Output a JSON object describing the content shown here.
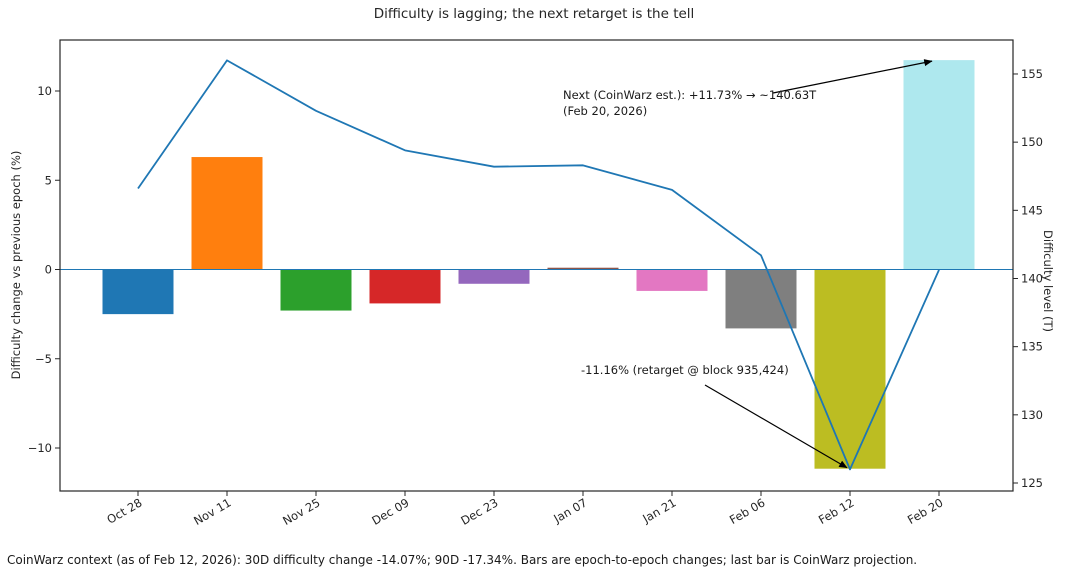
{
  "title": "Difficulty is lagging; the next retarget is the tell",
  "footer": "CoinWarz context (as of Feb 12, 2026): 30D difficulty change -14.07%; 90D -17.34%. Bars are epoch-to-epoch changes; last bar is CoinWarz projection.",
  "chart_data": {
    "type": "bar",
    "title": "Difficulty is lagging; the next retarget is the tell",
    "categories": [
      "Oct 28",
      "Nov 11",
      "Nov 25",
      "Dec 09",
      "Dec 23",
      "Jan 07",
      "Jan 21",
      "Feb 06",
      "Feb 12",
      "Feb 20"
    ],
    "series": [
      {
        "name": "Difficulty change vs previous epoch (%)",
        "type": "bar",
        "axis": "left",
        "values": [
          -2.5,
          6.3,
          -2.3,
          -1.9,
          -0.8,
          0.1,
          -1.2,
          -3.3,
          -11.16,
          11.73
        ],
        "bar_colors": [
          "#1f77b4",
          "#ff7f0e",
          "#2ca02c",
          "#d62728",
          "#9467bd",
          "#8c564b",
          "#e377c2",
          "#7f7f7f",
          "#bcbd22",
          "#aee8ee"
        ]
      },
      {
        "name": "Difficulty level (T)",
        "type": "line",
        "axis": "right",
        "values": [
          146.6,
          156.0,
          152.3,
          149.4,
          148.2,
          148.3,
          146.5,
          141.7,
          126.0,
          140.63
        ],
        "color": "#1f77b4"
      }
    ],
    "ylabel_left": "Difficulty change vs previous epoch (%)",
    "ylabel_right": "Difficulty level (T)",
    "yticks_left": [
      -10,
      -5,
      0,
      5,
      10
    ],
    "yticks_right": [
      125,
      130,
      135,
      140,
      145,
      150,
      155
    ],
    "ylim_left": [
      -12.4,
      12.9
    ],
    "ylim_right": [
      124.4,
      157.5
    ],
    "zero_line_value": 0,
    "zero_line_color": "#1f77b4",
    "grid": false,
    "legend": "none",
    "annotations": {
      "next_estimate": {
        "line1": "Next (CoinWarz est.): +11.73% → ~140.63T",
        "line2": "(Feb 20, 2026)",
        "points_to": "top of Feb 20 projection bar"
      },
      "retarget": {
        "line1": "-11.16% (retarget @ block 935,424)",
        "points_to": "bottom of Feb 12 bar / line minimum"
      }
    }
  }
}
